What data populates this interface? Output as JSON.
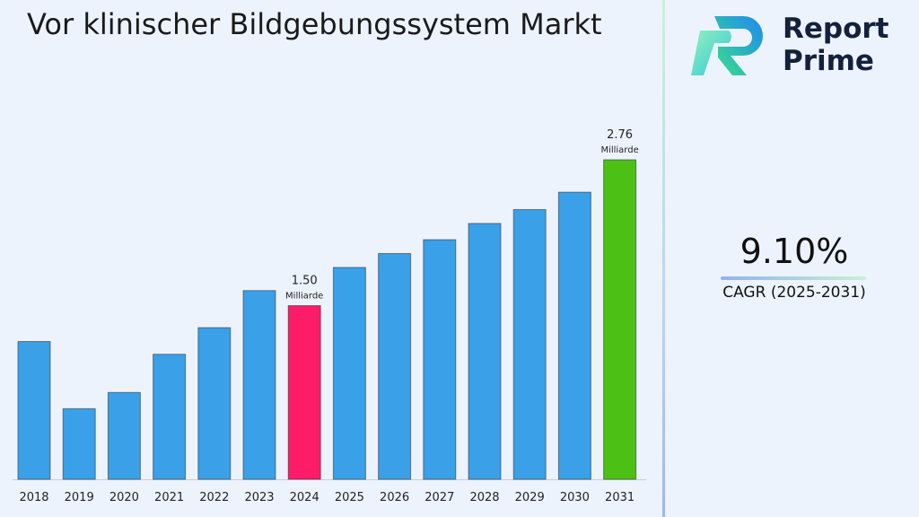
{
  "title": "Vor klinischer Bildgebungssystem Markt",
  "logo": {
    "line1": "Report",
    "line2": "Prime",
    "icon": "report-prime-logo-icon"
  },
  "cagr": {
    "value": "9.10%",
    "label": "CAGR (2025-2031)"
  },
  "colors": {
    "bar_default": "#3aa0e8",
    "bar_highlight_2024": "#fc1c68",
    "bar_highlight_2031": "#4cc015",
    "background": "#edf3fc"
  },
  "chart_data": {
    "type": "bar",
    "title": "Vor klinischer Bildgebungssystem Markt",
    "xlabel": "",
    "ylabel": "",
    "unit": "Milliarde",
    "ylim": [
      0,
      2.76
    ],
    "categories": [
      "2018",
      "2019",
      "2020",
      "2021",
      "2022",
      "2023",
      "2024",
      "2025",
      "2026",
      "2027",
      "2028",
      "2029",
      "2030",
      "2031"
    ],
    "values": [
      1.19,
      0.61,
      0.75,
      1.08,
      1.31,
      1.63,
      1.5,
      1.83,
      1.95,
      2.07,
      2.21,
      2.33,
      2.48,
      2.76
    ],
    "annotations": [
      {
        "category": "2024",
        "value_label": "1.50",
        "unit_label": "Milliarde"
      },
      {
        "category": "2031",
        "value_label": "2.76",
        "unit_label": "Milliarde"
      }
    ]
  }
}
